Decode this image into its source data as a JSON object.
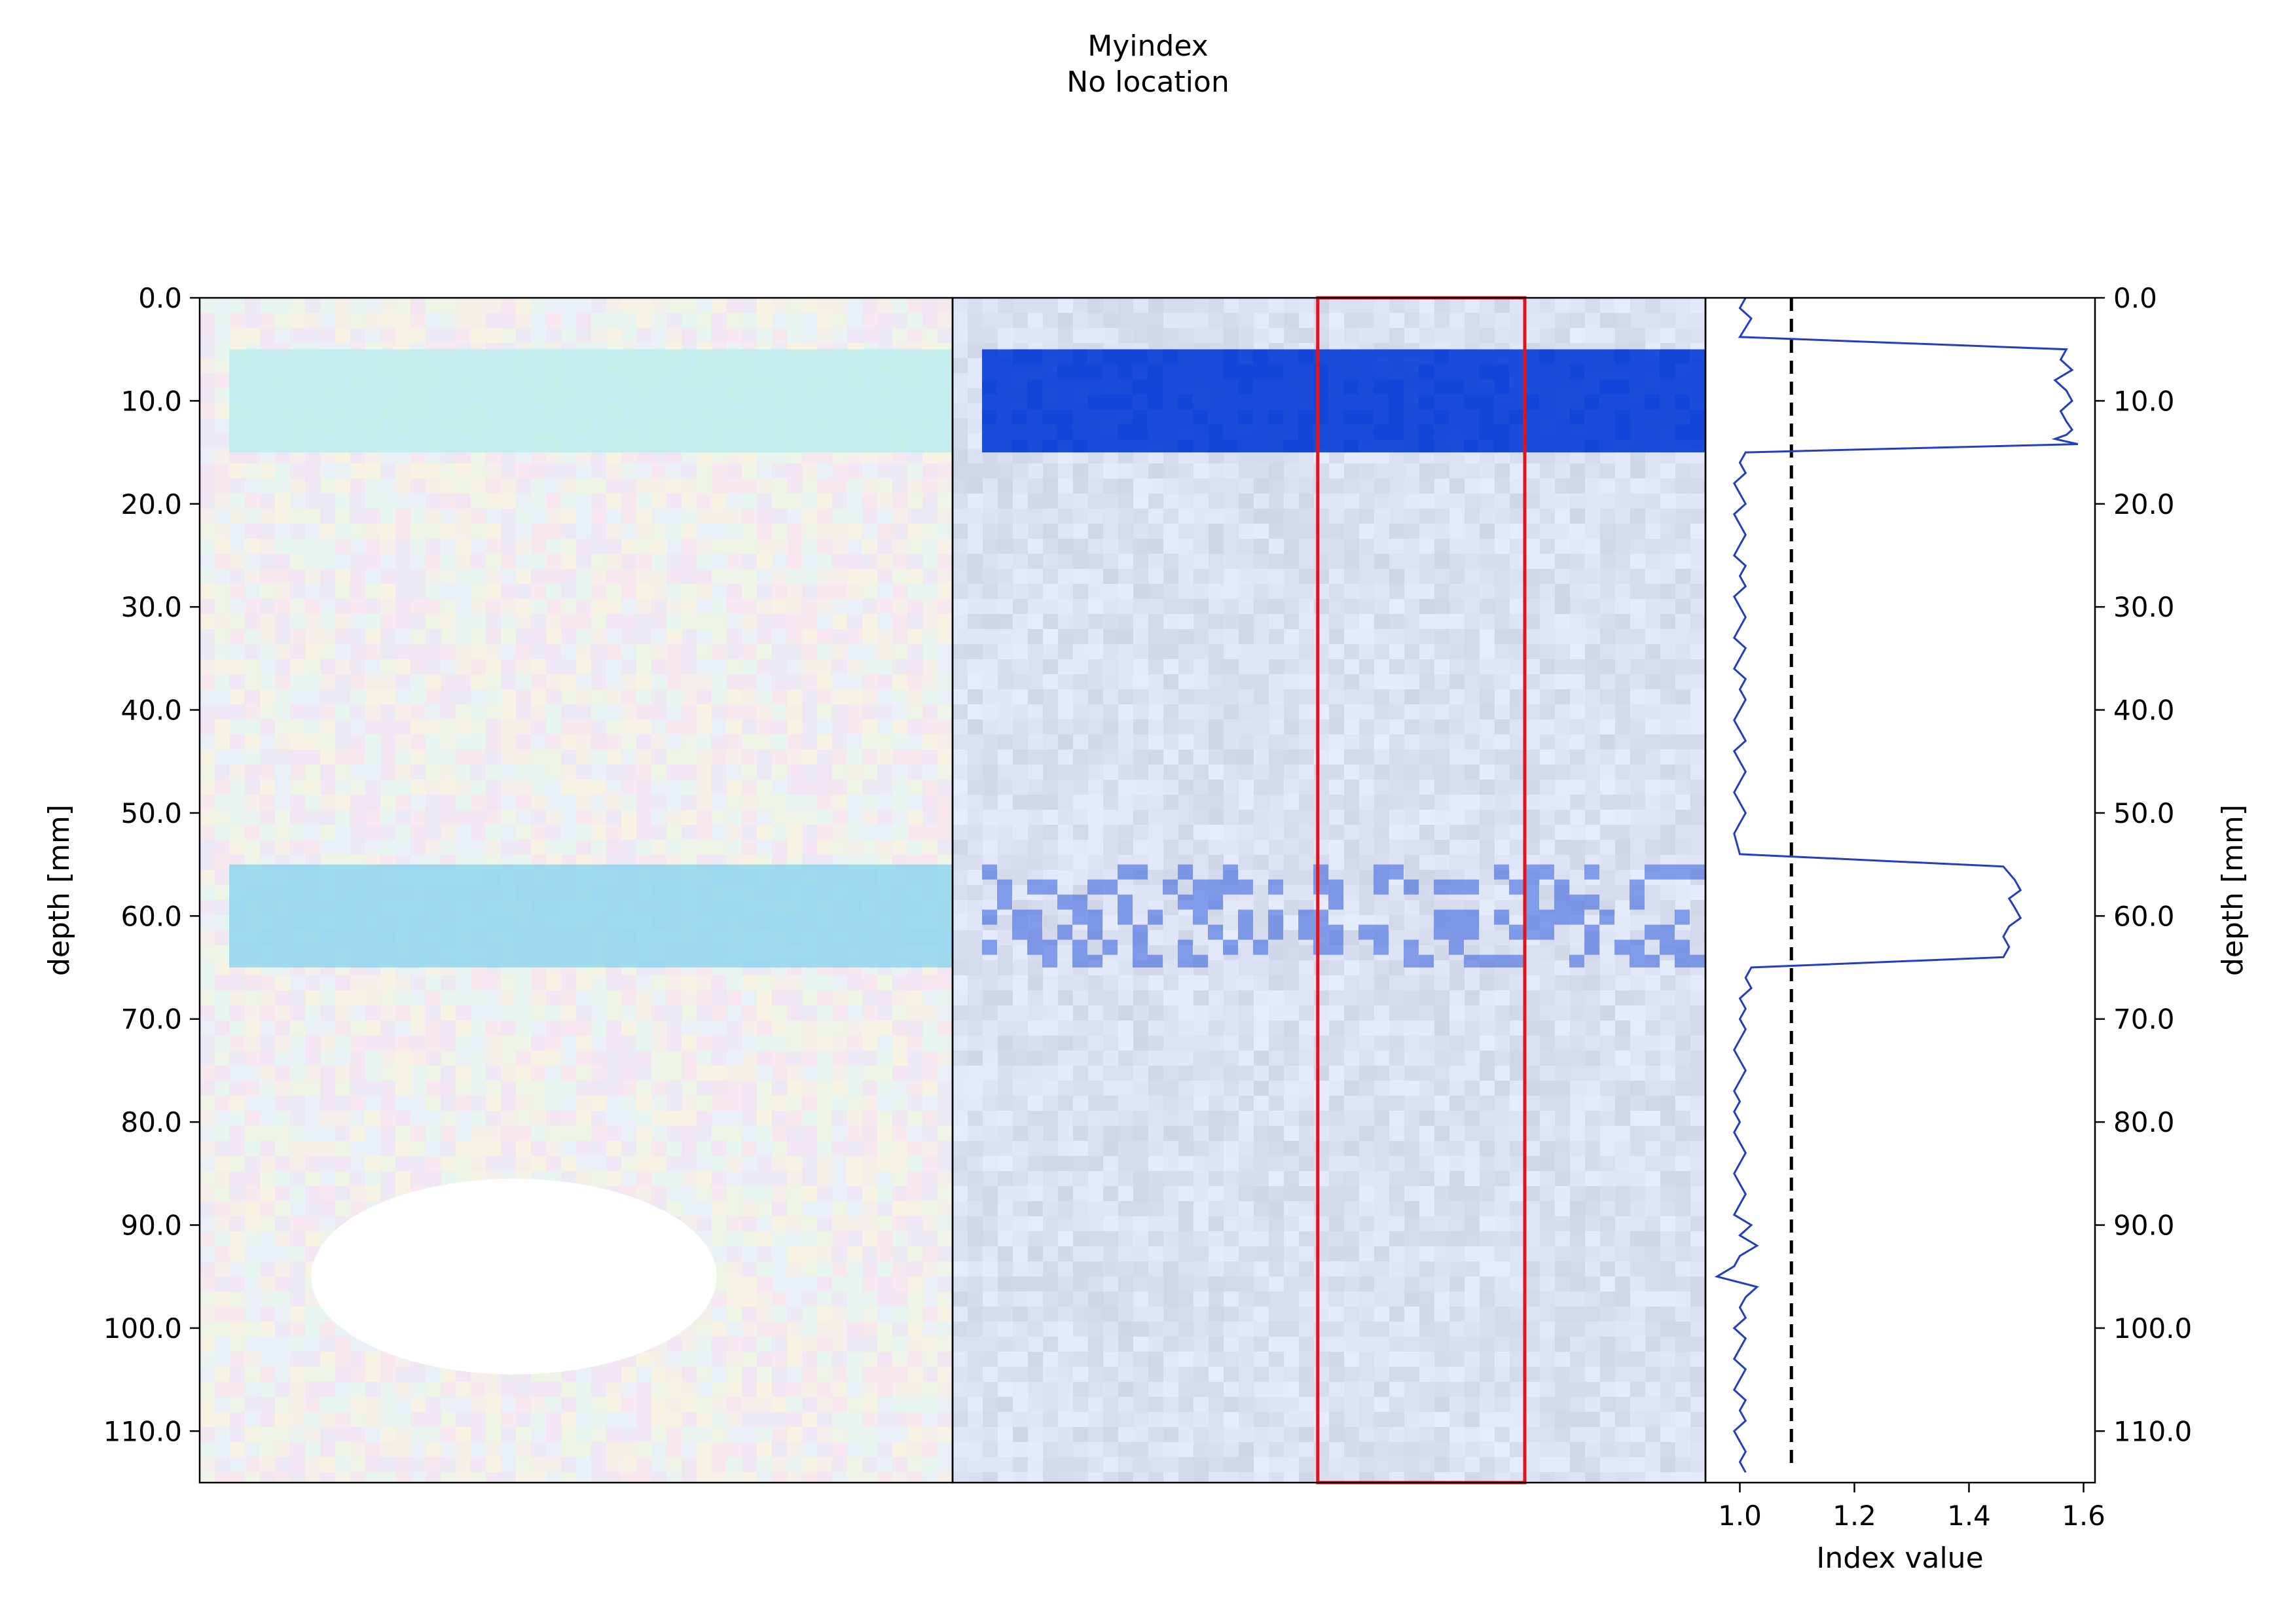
{
  "figure": {
    "title": "Myindex",
    "subtitle": "No location"
  },
  "colors": {
    "profile_line": "#1f3fc4",
    "threshold_line": "#000000",
    "roi_box": "#e0141c",
    "index_band": "#0a3fd6",
    "index_background": "#dbe2f8",
    "rgb_background": "#f3ecec",
    "rgb_band_upper": "#b9ecec",
    "rgb_band_lower": "#8fd6ec"
  },
  "chart_data": [
    {
      "type": "heatmap",
      "panel": "rgb-image",
      "ylabel": "depth [mm]",
      "ylim": [
        115,
        0
      ],
      "yticks": [
        "0.0",
        "10.0",
        "20.0",
        "30.0",
        "40.0",
        "50.0",
        "60.0",
        "70.0",
        "80.0",
        "90.0",
        "100.0",
        "110.0"
      ],
      "bands_depth_mm": [
        [
          5,
          15
        ],
        [
          55,
          65
        ]
      ],
      "hole": {
        "center_depth_mm": 95,
        "depth_range_mm": [
          86,
          105
        ]
      }
    },
    {
      "type": "heatmap",
      "panel": "index-map",
      "ylim": [
        115,
        0
      ],
      "bands_depth_mm": [
        [
          5,
          15
        ],
        [
          55,
          65
        ]
      ],
      "hole": {
        "center_depth_mm": 95,
        "depth_range_mm": [
          86,
          105
        ]
      },
      "roi_box": {
        "x_fraction": [
          0.485,
          0.76
        ],
        "depth_mm": [
          0,
          115
        ]
      }
    },
    {
      "type": "line",
      "panel": "index-profile",
      "xlabel": "Index value",
      "ylabel": "depth [mm]",
      "xlim": [
        0.94,
        1.62
      ],
      "ylim": [
        115,
        0
      ],
      "xticks": [
        "1.0",
        "1.2",
        "1.4",
        "1.6"
      ],
      "yticks": [
        "0.0",
        "10.0",
        "20.0",
        "30.0",
        "40.0",
        "50.0",
        "60.0",
        "70.0",
        "80.0",
        "90.0",
        "100.0",
        "110.0"
      ],
      "threshold": 1.09,
      "series": [
        {
          "x": [
            1.01,
            1.0,
            1.02,
            1.0,
            1.57,
            1.56,
            1.58,
            1.55,
            1.57,
            1.58,
            1.56,
            1.57,
            1.58,
            1.57,
            1.55,
            1.59,
            1.01,
            1.0,
            1.01,
            0.99,
            1.0,
            1.01,
            0.99,
            1.0,
            1.01,
            1.0,
            0.99,
            1.01,
            1.0,
            1.01,
            0.99,
            1.0,
            1.01,
            1.0,
            0.99,
            1.01,
            1.0,
            0.99,
            1.01,
            1.0,
            1.01,
            1.0,
            0.99,
            1.0,
            1.01,
            0.99,
            1.0,
            1.01,
            1.0,
            0.99,
            1.0,
            1.01,
            1.0,
            0.99,
            1.0,
            1.46,
            1.48,
            1.49,
            1.47,
            1.48,
            1.49,
            1.47,
            1.46,
            1.47,
            1.46,
            1.02,
            1.01,
            1.02,
            1.0,
            1.01,
            1.0,
            1.01,
            1.0,
            0.99,
            1.0,
            1.01,
            1.0,
            0.99,
            1.0,
            0.99,
            1.0,
            0.99,
            1.0,
            1.01,
            1.0,
            0.99,
            1.0,
            1.01,
            1.0,
            0.99,
            1.02,
            1.0,
            1.03,
            1.0,
            0.99,
            0.96,
            1.03,
            1.01,
            1.0,
            1.01,
            0.99,
            1.01,
            1.0,
            0.99,
            1.01,
            1.0,
            0.99,
            1.01,
            1.0,
            1.01,
            0.99,
            1.0,
            1.01,
            1.0,
            1.01
          ],
          "y": [
            0,
            1,
            2,
            3.8,
            5,
            6,
            7,
            8,
            9,
            10,
            11,
            12,
            12.8,
            13.3,
            13.7,
            14.2,
            15,
            16,
            17,
            18,
            19,
            20,
            21,
            22,
            23,
            24,
            25,
            26,
            27,
            28,
            29,
            30,
            31,
            32,
            33,
            34,
            35,
            36,
            37,
            38,
            39,
            40,
            41,
            42,
            43,
            44,
            45,
            46,
            47,
            48,
            49,
            50,
            51,
            52,
            54,
            55.2,
            56.5,
            57.5,
            58.3,
            59.2,
            60.2,
            61,
            62,
            63,
            64,
            65,
            66,
            67,
            68,
            69,
            70,
            71,
            72,
            73,
            74,
            75,
            76,
            77,
            78,
            79,
            80,
            81,
            82,
            83,
            84,
            85,
            86,
            87,
            88,
            89,
            90,
            91,
            92,
            93,
            94,
            95,
            96,
            97,
            98,
            99,
            100,
            101,
            102,
            103,
            104,
            105,
            106,
            107,
            108,
            109,
            110,
            111,
            112,
            113,
            114
          ]
        }
      ]
    }
  ]
}
